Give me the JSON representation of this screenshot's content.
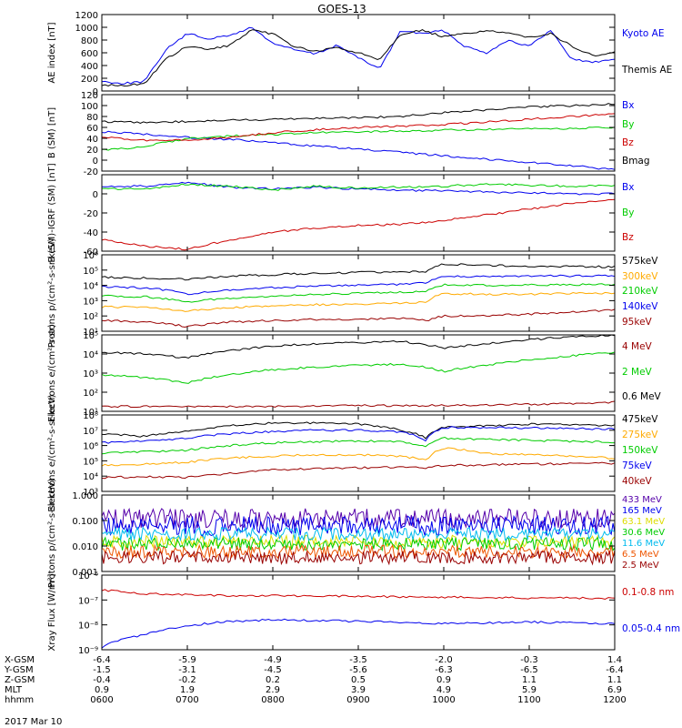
{
  "title": "GOES-13",
  "date_label": "2017 Mar 10",
  "footer": {
    "rows": [
      {
        "label": "X-GSM",
        "values": [
          "-6.4",
          "-5.9",
          "-4.9",
          "-3.5",
          "-2.0",
          "-0.3",
          "1.4"
        ]
      },
      {
        "label": "Y-GSM",
        "values": [
          "-1.5",
          "-3.1",
          "-4.5",
          "-5.6",
          "-6.3",
          "-6.5",
          "-6.4"
        ]
      },
      {
        "label": "Z-GSM",
        "values": [
          "-0.4",
          "-0.2",
          "0.2",
          "0.5",
          "0.9",
          "1.1",
          "1.1"
        ]
      },
      {
        "label": "MLT",
        "values": [
          "0.9",
          "1.9",
          "2.9",
          "3.9",
          "4.9",
          "5.9",
          "6.9"
        ]
      },
      {
        "label": "hhmm",
        "values": [
          "0600",
          "0700",
          "0800",
          "0900",
          "1000",
          "1100",
          "1200"
        ]
      }
    ]
  },
  "colors": {
    "black": "#000000",
    "blue": "#0000ee",
    "green": "#00cc00",
    "red": "#cc0000",
    "orange": "#ffaa00",
    "darkred": "#990000",
    "purple": "#5500aa",
    "cyan": "#00bbee",
    "yellow": "#dddd00",
    "orangered": "#ee5500"
  },
  "chart_data": [
    {
      "type": "line",
      "ylabel": "AE index [nT]",
      "ylim": [
        0,
        1200
      ],
      "log": false,
      "ticks": [
        "0",
        "200",
        "400",
        "600",
        "800",
        "1000",
        "1200"
      ],
      "tick_values": [
        0,
        200,
        400,
        600,
        800,
        1000,
        1200
      ],
      "x": [
        6.0,
        6.25,
        6.5,
        6.75,
        7.0,
        7.25,
        7.5,
        7.75,
        8.0,
        8.25,
        8.5,
        8.75,
        9.0,
        9.25,
        9.5,
        9.75,
        10.0,
        10.25,
        10.5,
        10.75,
        11.0,
        11.25,
        11.5,
        11.75,
        12.0
      ],
      "series": [
        {
          "name": "Kyoto AE",
          "color": "blue",
          "values": [
            150,
            120,
            150,
            650,
            900,
            820,
            870,
            1000,
            750,
            650,
            580,
            720,
            520,
            350,
            950,
            900,
            950,
            700,
            600,
            800,
            700,
            950,
            500,
            450,
            500
          ]
        },
        {
          "name": "Themis AE",
          "color": "black",
          "values": [
            100,
            80,
            120,
            500,
            700,
            650,
            720,
            950,
            900,
            700,
            620,
            680,
            600,
            500,
            900,
            950,
            850,
            900,
            950,
            900,
            850,
            900,
            700,
            550,
            600
          ]
        }
      ]
    },
    {
      "type": "line",
      "ylabel": "B (SM) [nT]",
      "ylim": [
        -20,
        120
      ],
      "log": false,
      "ticks": [
        "-20",
        "0",
        "20",
        "40",
        "60",
        "80",
        "100",
        "120"
      ],
      "tick_values": [
        -20,
        0,
        20,
        40,
        60,
        80,
        100,
        120
      ],
      "x": [
        6.0,
        6.5,
        7.0,
        7.5,
        8.0,
        8.5,
        9.0,
        9.5,
        10.0,
        10.5,
        11.0,
        11.5,
        12.0
      ],
      "series": [
        {
          "name": "Bx",
          "color": "blue",
          "values": [
            52,
            48,
            42,
            38,
            32,
            26,
            20,
            14,
            8,
            2,
            -4,
            -10,
            -18
          ]
        },
        {
          "name": "By",
          "color": "green",
          "values": [
            18,
            25,
            40,
            44,
            47,
            50,
            52,
            53,
            55,
            56,
            57,
            58,
            60
          ]
        },
        {
          "name": "Bz",
          "color": "red",
          "values": [
            42,
            36,
            36,
            42,
            50,
            56,
            60,
            62,
            65,
            70,
            75,
            80,
            85
          ]
        },
        {
          "name": "Bmag",
          "color": "black",
          "values": [
            70,
            69,
            71,
            73,
            75,
            77,
            78,
            80,
            87,
            92,
            97,
            100,
            103
          ]
        }
      ]
    },
    {
      "type": "line",
      "ylabel": "B (SM)-IGRF (SM) [nT]",
      "ylim": [
        -60,
        20
      ],
      "log": false,
      "ticks": [
        "-60",
        "-40",
        "-20",
        "0"
      ],
      "tick_values": [
        -60,
        -40,
        -20,
        0
      ],
      "x": [
        6.0,
        6.5,
        7.0,
        7.5,
        8.0,
        8.5,
        9.0,
        9.5,
        10.0,
        10.5,
        11.0,
        11.5,
        12.0
      ],
      "series": [
        {
          "name": "Bx",
          "color": "blue",
          "values": [
            8,
            8,
            12,
            7,
            5,
            7,
            5,
            4,
            3,
            2,
            1,
            0,
            0
          ]
        },
        {
          "name": "By",
          "color": "green",
          "values": [
            5,
            5,
            10,
            8,
            4,
            8,
            6,
            7,
            8,
            10,
            9,
            8,
            9
          ]
        },
        {
          "name": "Bz",
          "color": "red",
          "values": [
            -48,
            -55,
            -58,
            -48,
            -40,
            -36,
            -33,
            -32,
            -28,
            -22,
            -16,
            -10,
            -6
          ]
        }
      ]
    },
    {
      "type": "line",
      "ylabel": "Protons p/(cm²-s-sr-keV)",
      "ylim": [
        10,
        1000000
      ],
      "log": true,
      "ticks": [
        "10¹",
        "10²",
        "10³",
        "10⁴",
        "10⁵",
        "10⁶"
      ],
      "tick_values": [
        10,
        100,
        1000,
        10000,
        100000,
        1000000
      ],
      "x": [
        6.0,
        6.5,
        7.0,
        7.5,
        8.0,
        8.5,
        9.0,
        9.5,
        9.8,
        10.0,
        10.5,
        11.0,
        11.5,
        12.0
      ],
      "series": [
        {
          "name": "575keV",
          "color": "black",
          "values": [
            35000,
            30000,
            25000,
            40000,
            50000,
            60000,
            70000,
            80000,
            80000,
            250000,
            200000,
            180000,
            170000,
            160000
          ]
        },
        {
          "name": "300keV",
          "color": "orange",
          "values": [
            400,
            350,
            200,
            350,
            450,
            550,
            600,
            700,
            800,
            3000,
            2500,
            2700,
            2900,
            3100
          ]
        },
        {
          "name": "210keV",
          "color": "green",
          "values": [
            2000,
            1800,
            800,
            1500,
            2000,
            2500,
            3000,
            3500,
            4000,
            11000,
            10000,
            10500,
            11000,
            11500
          ]
        },
        {
          "name": "140keV",
          "color": "blue",
          "values": [
            8000,
            7000,
            2500,
            5000,
            7000,
            9000,
            10000,
            12000,
            14000,
            40000,
            38000,
            40000,
            42000,
            45000
          ]
        },
        {
          "name": "95keV",
          "color": "darkred",
          "values": [
            50,
            40,
            20,
            40,
            50,
            60,
            60,
            70,
            50,
            100,
            110,
            130,
            180,
            250
          ]
        }
      ]
    },
    {
      "type": "line",
      "ylabel": "Electrons e/(cm²-s-sr)",
      "ylim": [
        10,
        100000
      ],
      "log": true,
      "ticks": [
        "10¹",
        "10²",
        "10³",
        "10⁴",
        "10⁵"
      ],
      "tick_values": [
        10,
        100,
        1000,
        10000,
        100000
      ],
      "x": [
        6.0,
        6.5,
        7.0,
        7.5,
        8.0,
        8.5,
        9.0,
        9.5,
        10.0,
        10.5,
        11.0,
        11.5,
        12.0
      ],
      "series": [
        {
          "name": "4 MeV",
          "color": "darkred",
          "values": [
            18,
            18,
            17,
            18,
            18,
            19,
            20,
            20,
            20,
            22,
            23,
            25,
            30
          ]
        },
        {
          "name": "2 MeV",
          "color": "green",
          "values": [
            800,
            600,
            300,
            800,
            1500,
            2000,
            2500,
            3000,
            1200,
            2500,
            5000,
            8000,
            12000
          ]
        },
        {
          "name": "0.6 MeV",
          "color": "black",
          "values": [
            12000,
            10000,
            6000,
            15000,
            25000,
            35000,
            40000,
            45000,
            20000,
            35000,
            55000,
            80000,
            100000
          ]
        }
      ]
    },
    {
      "type": "line",
      "ylabel": "Electrons e/(cm²-s-sr-keV)",
      "ylim": [
        1000,
        100000000
      ],
      "log": true,
      "ticks": [
        "10³",
        "10⁴",
        "10⁵",
        "10⁶",
        "10⁷",
        "10⁸"
      ],
      "tick_values": [
        1000,
        10000,
        100000,
        1000000,
        10000000,
        100000000
      ],
      "x": [
        6.0,
        6.5,
        7.0,
        7.5,
        8.0,
        8.5,
        9.0,
        9.5,
        9.8,
        10.0,
        10.5,
        11.0,
        11.5,
        12.0
      ],
      "series": [
        {
          "name": "475keV",
          "color": "black",
          "values": [
            6000000,
            4000000,
            8000000,
            20000000,
            30000000,
            30000000,
            25000000,
            10000000,
            3000000,
            15000000,
            20000000,
            25000000,
            22000000,
            20000000
          ]
        },
        {
          "name": "275keV",
          "color": "orange",
          "values": [
            50000,
            60000,
            80000,
            150000,
            200000,
            250000,
            250000,
            200000,
            100000,
            700000,
            300000,
            250000,
            200000,
            150000
          ]
        },
        {
          "name": "150keV",
          "color": "green",
          "values": [
            300000,
            400000,
            500000,
            1000000,
            1500000,
            1800000,
            2000000,
            1800000,
            800000,
            3000000,
            2500000,
            2200000,
            1900000,
            1600000
          ]
        },
        {
          "name": "75keV",
          "color": "blue",
          "values": [
            1500000,
            2000000,
            3000000,
            6000000,
            8000000,
            10000000,
            10000000,
            8000000,
            2000000,
            15000000,
            15000000,
            14000000,
            13000000,
            12000000
          ]
        },
        {
          "name": "40keV",
          "color": "darkred",
          "values": [
            8000,
            9000,
            8000,
            15000,
            25000,
            30000,
            35000,
            40000,
            35000,
            50000,
            55000,
            60000,
            65000,
            70000
          ]
        }
      ]
    },
    {
      "type": "line",
      "ylabel": "Protons p/(cm²-s-sr-keV)",
      "ylim": [
        0.001,
        1.0
      ],
      "log": true,
      "ticks": [
        "0.001",
        "0.010",
        "0.100",
        "1.000"
      ],
      "tick_values": [
        0.001,
        0.01,
        0.1,
        1.0
      ],
      "x": [
        6.0,
        12.0
      ],
      "series": [
        {
          "name": "433 MeV",
          "color": "purple",
          "values": [
            0.12,
            0.12
          ]
        },
        {
          "name": "165 MeV",
          "color": "blue",
          "values": [
            0.06,
            0.06
          ]
        },
        {
          "name": "63.1 MeV",
          "color": "yellow",
          "values": [
            0.015,
            0.015
          ]
        },
        {
          "name": "30.6 MeV",
          "color": "green",
          "values": [
            0.012,
            0.012
          ]
        },
        {
          "name": "11.6 MeV",
          "color": "cyan",
          "values": [
            0.03,
            0.03
          ]
        },
        {
          "name": "6.5 MeV",
          "color": "orangered",
          "values": [
            0.006,
            0.006
          ]
        },
        {
          "name": "2.5 MeV",
          "color": "darkred",
          "values": [
            0.0035,
            0.0035
          ]
        }
      ]
    },
    {
      "type": "line",
      "ylabel": "Xray Flux [W/m²]",
      "ylim": [
        1e-09,
        1e-06
      ],
      "log": true,
      "ticks": [
        "10⁻⁹",
        "10⁻⁸",
        "10⁻⁷",
        "10⁻⁶"
      ],
      "tick_values": [
        1e-09,
        1e-08,
        1e-07,
        1e-06
      ],
      "x": [
        6.0,
        6.5,
        7.0,
        7.5,
        8.0,
        8.5,
        9.0,
        9.5,
        10.0,
        10.5,
        11.0,
        11.5,
        12.0
      ],
      "series": [
        {
          "name": "0.1-0.8 nm",
          "color": "red",
          "values": [
            2.5e-07,
            1.8e-07,
            1.6e-07,
            1.5e-07,
            1.5e-07,
            1.45e-07,
            1.4e-07,
            1.35e-07,
            1.3e-07,
            1.25e-07,
            1.2e-07,
            1.2e-07,
            1.15e-07
          ]
        },
        {
          "name": "0.05-0.4 nm",
          "color": "blue",
          "values": [
            1.2e-09,
            4e-09,
            9e-09,
            1.4e-08,
            1.6e-08,
            1.5e-08,
            1.4e-08,
            1.3e-08,
            1.1e-08,
            1.2e-08,
            1.3e-08,
            1.2e-08,
            1.1e-08
          ]
        }
      ]
    }
  ]
}
